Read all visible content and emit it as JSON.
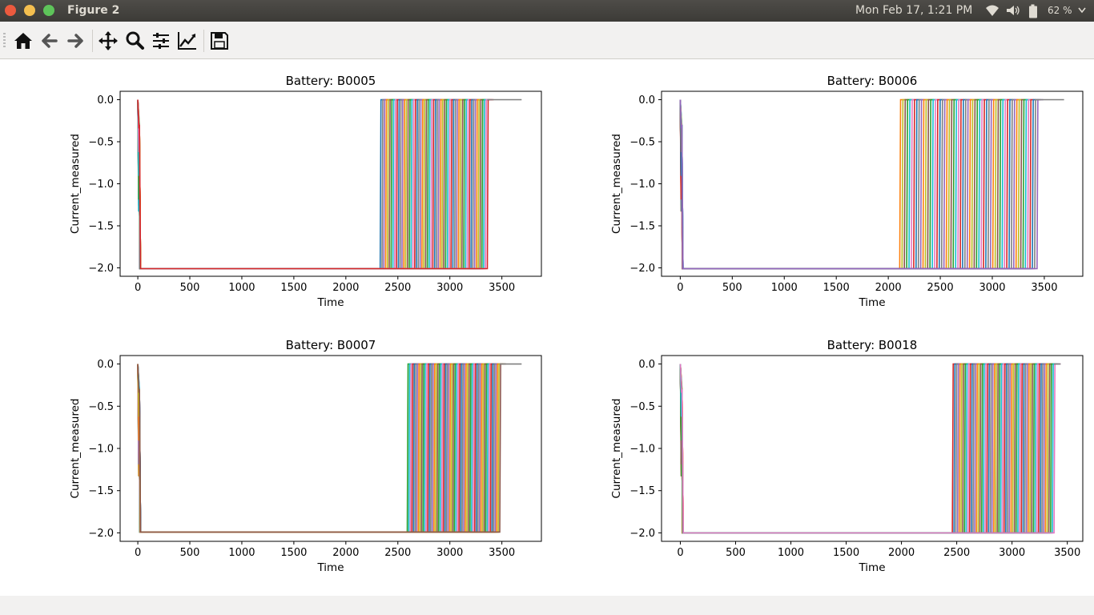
{
  "window": {
    "title": "Figure 2"
  },
  "system": {
    "clock": "Mon Feb 17,  1:21 PM",
    "battery": "62 %"
  },
  "toolbar": {
    "buttons": [
      "home",
      "back",
      "forward",
      "pan",
      "zoom",
      "configure-subplots",
      "edit-axes",
      "save"
    ]
  },
  "chart_data": [
    {
      "type": "line",
      "title": "Battery: B0005",
      "xlabel": "Time",
      "ylabel": "Current_measured",
      "xlim": [
        -170,
        3880
      ],
      "ylim": [
        -2.1,
        0.1
      ],
      "xticks": [
        "0",
        "500",
        "1000",
        "1500",
        "2000",
        "2500",
        "3000",
        "3500"
      ],
      "yticks": [
        "0.0",
        "−0.5",
        "−1.0",
        "−1.5",
        "−2.0"
      ],
      "profile": {
        "initial": 0.0,
        "drop_at": 20,
        "plateau": -2.01,
        "rise_range": [
          2330,
          3360
        ],
        "tail_end": 3690
      },
      "series_count": "many (one per discharge cycle)"
    },
    {
      "type": "line",
      "title": "Battery: B0006",
      "xlabel": "Time",
      "ylabel": "Current_measured",
      "xlim": [
        -180,
        3870
      ],
      "ylim": [
        -2.1,
        0.1
      ],
      "xticks": [
        "0",
        "500",
        "1000",
        "1500",
        "2000",
        "2500",
        "3000",
        "3500"
      ],
      "yticks": [
        "0.0",
        "−0.5",
        "−1.0",
        "−1.5",
        "−2.0"
      ],
      "profile": {
        "initial": 0.0,
        "drop_at": 20,
        "plateau": -2.01,
        "rise_range": [
          2110,
          3430
        ],
        "tail_end": 3690
      },
      "series_count": "many (one per discharge cycle)"
    },
    {
      "type": "line",
      "title": "Battery: B0007",
      "xlabel": "Time",
      "ylabel": "Current_measured",
      "xlim": [
        -170,
        3880
      ],
      "ylim": [
        -2.1,
        0.1
      ],
      "xticks": [
        "0",
        "500",
        "1000",
        "1500",
        "2000",
        "2500",
        "3000",
        "3500"
      ],
      "yticks": [
        "0.0",
        "−0.5",
        "−1.0",
        "−1.5",
        "−2.0"
      ],
      "profile": {
        "initial": 0.0,
        "drop_at": 20,
        "plateau": -1.99,
        "rise_range": [
          2590,
          3480
        ],
        "tail_end": 3690
      },
      "series_count": "many (one per discharge cycle)"
    },
    {
      "type": "line",
      "title": "Battery: B0018",
      "xlabel": "Time",
      "ylabel": "Current_measured",
      "xlim": [
        -170,
        3640
      ],
      "ylim": [
        -2.1,
        0.1
      ],
      "xticks": [
        "0",
        "500",
        "1000",
        "1500",
        "2000",
        "2500",
        "3000",
        "3500"
      ],
      "yticks": [
        "0.0",
        "−0.5",
        "−1.0",
        "−1.5",
        "−2.0"
      ],
      "profile": {
        "initial": 0.0,
        "drop_at": 20,
        "plateau": -2.0,
        "rise_range": [
          2460,
          3380
        ],
        "tail_end": 3440
      },
      "series_count": "many (one per discharge cycle)"
    }
  ],
  "colors": {
    "series": [
      "#1f77b4",
      "#ff7f0e",
      "#2ca02c",
      "#d62728",
      "#9467bd",
      "#8c564b",
      "#e377c2",
      "#7f7f7f",
      "#bcbd22",
      "#17becf"
    ]
  }
}
